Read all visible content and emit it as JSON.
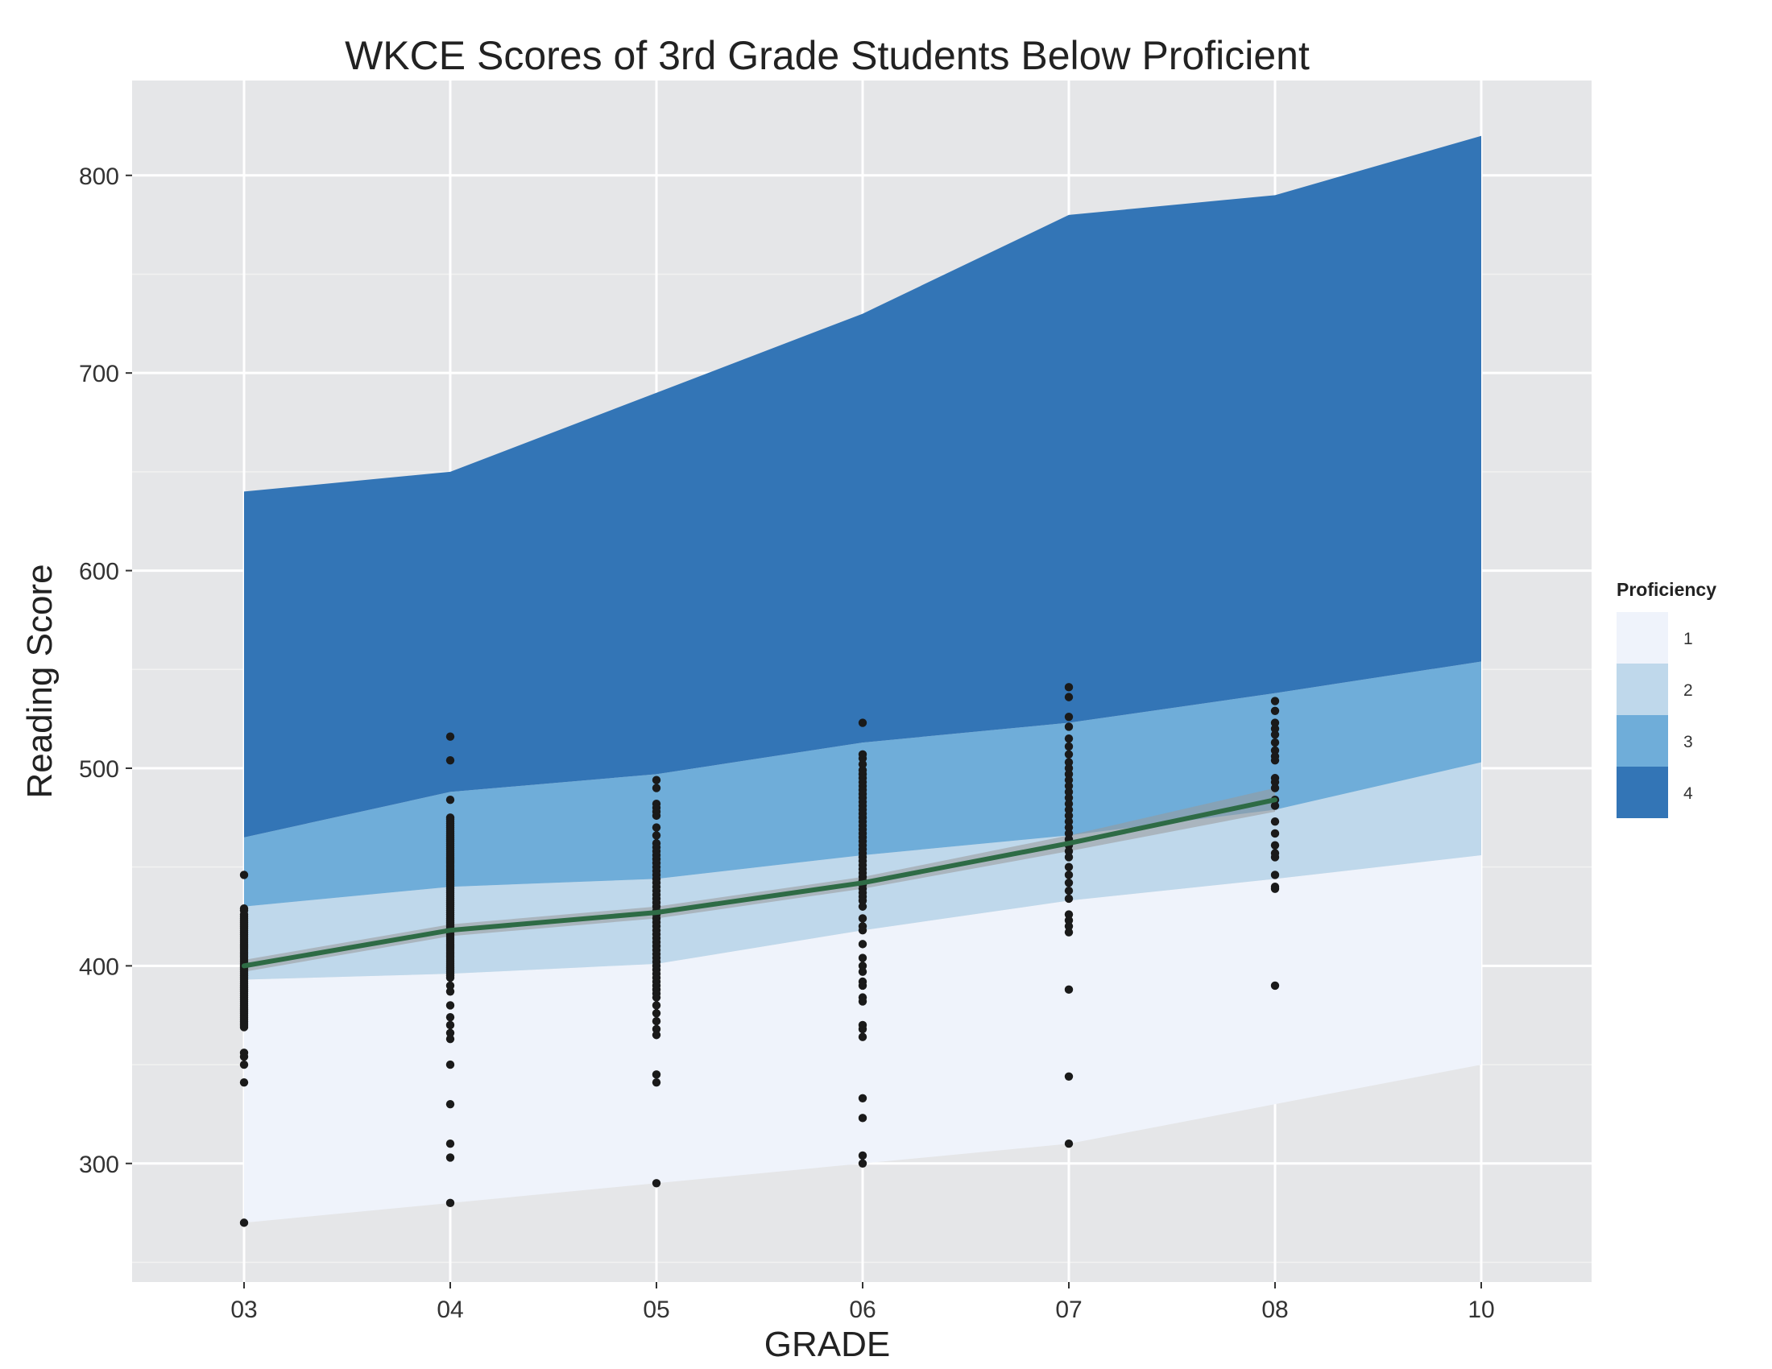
{
  "chart_data": {
    "type": "area",
    "title": "WKCE Scores of 3rd Grade Students Below Proficient",
    "xlabel": "GRADE",
    "ylabel": "Reading Score",
    "categories": [
      "03",
      "04",
      "05",
      "06",
      "07",
      "08",
      "10"
    ],
    "yticks": [
      300,
      400,
      500,
      600,
      700,
      800
    ],
    "ylim": [
      240,
      848
    ],
    "grid": true,
    "legend": {
      "title": "Proficiency",
      "placement": "right",
      "entries": [
        {
          "label": "1",
          "color": "#eff3fb"
        },
        {
          "label": "2",
          "color": "#bfd8eb"
        },
        {
          "label": "3",
          "color": "#6fadd9"
        },
        {
          "label": "4",
          "color": "#3375b6"
        }
      ]
    },
    "bands": [
      {
        "level": "1",
        "color": "#eff3fb",
        "lower": [
          270,
          280,
          290,
          300,
          310,
          330,
          350
        ],
        "upper": [
          393,
          396,
          401,
          418,
          433,
          444,
          456
        ]
      },
      {
        "level": "2",
        "color": "#bfd8eb",
        "lower": [
          393,
          396,
          401,
          418,
          433,
          444,
          456
        ],
        "upper": [
          430,
          440,
          444,
          456,
          466,
          479,
          503
        ]
      },
      {
        "level": "3",
        "color": "#6fadd9",
        "lower": [
          430,
          440,
          444,
          456,
          466,
          479,
          503
        ],
        "upper": [
          465,
          488,
          497,
          513,
          523,
          538,
          554
        ]
      },
      {
        "level": "4",
        "color": "#3375b6",
        "lower": [
          465,
          488,
          497,
          513,
          523,
          538,
          554
        ],
        "upper": [
          640,
          650,
          690,
          730,
          780,
          790,
          820
        ]
      }
    ],
    "trend": {
      "color": "#2e6b45",
      "x": [
        "03",
        "04",
        "05",
        "06",
        "07",
        "08"
      ],
      "y": [
        400,
        418,
        427,
        442,
        462,
        484
      ],
      "ci_low": [
        397,
        415,
        424,
        439,
        458,
        478
      ],
      "ci_high": [
        403,
        421,
        430,
        445,
        466,
        490
      ]
    },
    "points": {
      "color": "#1a1a1a",
      "03": [
        446,
        429,
        428,
        426,
        425,
        424,
        423,
        422,
        421,
        420,
        419,
        418,
        417,
        416,
        415,
        414,
        413,
        412,
        411,
        410,
        409,
        408,
        407,
        406,
        405,
        404,
        403,
        402,
        401,
        400,
        399,
        398,
        397,
        396,
        395,
        394,
        393,
        392,
        391,
        390,
        389,
        388,
        387,
        386,
        385,
        384,
        383,
        382,
        381,
        380,
        379,
        378,
        377,
        376,
        375,
        374,
        373,
        372,
        371,
        370,
        369,
        356,
        354,
        350,
        341,
        270
      ],
      "04": [
        516,
        504,
        484,
        475,
        474,
        473,
        472,
        471,
        470,
        469,
        468,
        467,
        466,
        465,
        464,
        463,
        462,
        461,
        460,
        459,
        458,
        457,
        456,
        455,
        454,
        453,
        452,
        451,
        450,
        449,
        448,
        447,
        446,
        445,
        444,
        443,
        442,
        441,
        440,
        439,
        438,
        437,
        436,
        435,
        434,
        433,
        432,
        431,
        430,
        429,
        428,
        427,
        426,
        425,
        424,
        423,
        422,
        421,
        420,
        419,
        418,
        417,
        416,
        415,
        414,
        413,
        412,
        411,
        410,
        409,
        408,
        407,
        406,
        405,
        404,
        403,
        402,
        401,
        400,
        399,
        398,
        397,
        396,
        395,
        394,
        390,
        387,
        380,
        374,
        370,
        366,
        363,
        350,
        330,
        310,
        303,
        280
      ],
      "05": [
        494,
        490,
        482,
        480,
        478,
        476,
        470,
        466,
        462,
        460,
        458,
        456,
        454,
        452,
        450,
        448,
        446,
        444,
        442,
        440,
        438,
        436,
        434,
        432,
        430,
        428,
        426,
        424,
        422,
        420,
        418,
        416,
        414,
        412,
        410,
        408,
        406,
        404,
        402,
        400,
        398,
        396,
        394,
        392,
        390,
        388,
        386,
        384,
        380,
        376,
        372,
        368,
        365,
        345,
        341,
        290
      ],
      "06": [
        523,
        507,
        505,
        502,
        499,
        497,
        495,
        493,
        491,
        489,
        487,
        485,
        483,
        481,
        479,
        477,
        475,
        473,
        471,
        469,
        467,
        465,
        463,
        461,
        459,
        457,
        455,
        453,
        451,
        449,
        447,
        445,
        443,
        441,
        439,
        437,
        435,
        433,
        430,
        424,
        420,
        418,
        411,
        404,
        400,
        397,
        392,
        390,
        384,
        382,
        370,
        368,
        364,
        333,
        323,
        304,
        300
      ],
      "07": [
        541,
        536,
        526,
        521,
        515,
        511,
        507,
        503,
        500,
        497,
        494,
        491,
        488,
        485,
        482,
        479,
        476,
        473,
        470,
        467,
        464,
        461,
        458,
        455,
        450,
        446,
        442,
        438,
        434,
        426,
        423,
        420,
        417,
        388,
        344,
        310
      ],
      "08": [
        534,
        529,
        523,
        520,
        517,
        513,
        509,
        506,
        504,
        495,
        493,
        490,
        484,
        481,
        473,
        467,
        461,
        457,
        455,
        446,
        440,
        439,
        390
      ]
    }
  }
}
